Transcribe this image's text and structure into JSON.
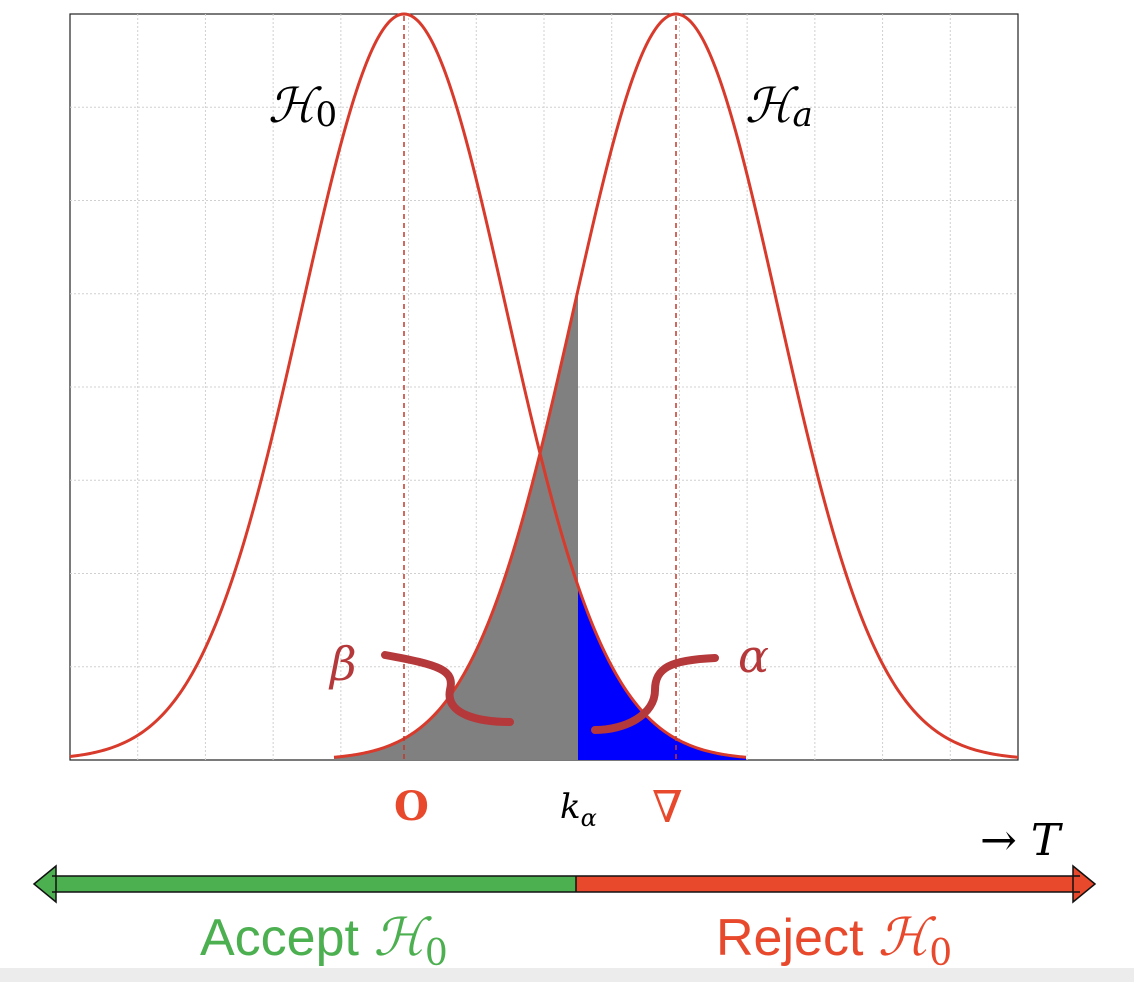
{
  "diagram": {
    "type": "hypothesis-test-distributions",
    "h0_label": "H0",
    "ha_label": "Ha",
    "beta_label": "β",
    "alpha_label": "α",
    "origin_label": "O",
    "threshold_label": "kα",
    "nabla_label": "∇",
    "axis_label": "→ T",
    "accept_text": "Accept",
    "reject_text": "Reject",
    "hypothesis_symbol": "ℋ",
    "hypothesis_subscript": "0",
    "alt_subscript": "a",
    "threshold_subscript": "α",
    "threshold_main": "k",
    "colors": {
      "curve": "#d83a2b",
      "beta_fill": "#808080",
      "alpha_fill": "#0000ff",
      "accept": "#4caf50",
      "reject": "#e8492c",
      "leader": "#b5383a",
      "grid": "#d0d0d0"
    }
  }
}
